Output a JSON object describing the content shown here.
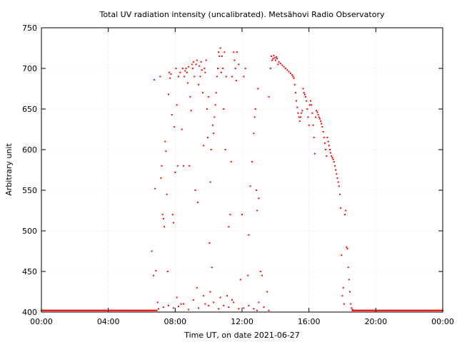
{
  "chart_data": {
    "type": "scatter",
    "title": "Total UV radiation intensity (uncalibrated). Metsähovi Radio Observatory",
    "xlabel": "Time UT, on date 2021-06-27",
    "ylabel": "Arbitrary unit",
    "xlim": [
      0,
      24
    ],
    "ylim": [
      400,
      750
    ],
    "x_ticks": [
      {
        "value": 0,
        "label": "00:00"
      },
      {
        "value": 4,
        "label": "04:00"
      },
      {
        "value": 8,
        "label": "08:00"
      },
      {
        "value": 12,
        "label": "12:00"
      },
      {
        "value": 16,
        "label": "16:00"
      },
      {
        "value": 20,
        "label": "20:00"
      },
      {
        "value": 24,
        "label": "00:00"
      }
    ],
    "y_ticks": [
      400,
      450,
      500,
      550,
      600,
      650,
      700,
      750
    ],
    "grid": true,
    "marker_color": "#ff0000",
    "series": [
      {
        "points": [
          [
            6.6,
            475
          ],
          [
            6.7,
            445
          ],
          [
            6.75,
            686
          ],
          [
            6.8,
            552
          ],
          [
            6.85,
            451
          ],
          [
            6.95,
            412
          ],
          [
            7.1,
            690
          ],
          [
            7.15,
            565
          ],
          [
            7.2,
            580
          ],
          [
            7.25,
            520
          ],
          [
            7.3,
            515
          ],
          [
            7.35,
            505
          ],
          [
            7.4,
            610
          ],
          [
            7.45,
            598
          ],
          [
            7.5,
            545
          ],
          [
            7.55,
            450
          ],
          [
            7.6,
            668
          ],
          [
            7.65,
            695
          ],
          [
            7.7,
            688
          ],
          [
            7.75,
            693
          ],
          [
            7.8,
            643
          ],
          [
            7.85,
            520
          ],
          [
            7.9,
            510
          ],
          [
            7.95,
            628
          ],
          [
            8.0,
            572
          ],
          [
            8.05,
            700
          ],
          [
            8.1,
            655
          ],
          [
            8.15,
            580
          ],
          [
            8.2,
            690
          ],
          [
            8.3,
            695
          ],
          [
            8.35,
            410
          ],
          [
            8.4,
            625
          ],
          [
            8.45,
            700
          ],
          [
            8.5,
            580
          ],
          [
            8.55,
            690
          ],
          [
            8.6,
            697
          ],
          [
            8.65,
            700
          ],
          [
            8.7,
            695
          ],
          [
            8.75,
            682
          ],
          [
            8.8,
            702
          ],
          [
            8.85,
            580
          ],
          [
            8.9,
            665
          ],
          [
            8.95,
            648
          ],
          [
            9.0,
            705
          ],
          [
            9.05,
            700
          ],
          [
            9.1,
            708
          ],
          [
            9.15,
            690
          ],
          [
            9.2,
            550
          ],
          [
            9.25,
            705
          ],
          [
            9.3,
            710
          ],
          [
            9.35,
            535
          ],
          [
            9.4,
            680
          ],
          [
            9.45,
            703
          ],
          [
            9.5,
            690
          ],
          [
            9.55,
            708
          ],
          [
            9.6,
            698
          ],
          [
            9.65,
            670
          ],
          [
            9.7,
            605
          ],
          [
            9.75,
            700
          ],
          [
            9.8,
            695
          ],
          [
            9.85,
            710
          ],
          [
            9.9,
            650
          ],
          [
            9.95,
            615
          ],
          [
            10.0,
            665
          ],
          [
            10.05,
            485
          ],
          [
            10.1,
            560
          ],
          [
            10.15,
            600
          ],
          [
            10.2,
            455
          ],
          [
            10.25,
            630
          ],
          [
            10.3,
            620
          ],
          [
            10.35,
            640
          ],
          [
            10.4,
            655
          ],
          [
            10.45,
            670
          ],
          [
            10.5,
            690
          ],
          [
            10.55,
            700
          ],
          [
            10.6,
            720
          ],
          [
            10.65,
            715
          ],
          [
            10.7,
            725
          ],
          [
            10.75,
            695
          ],
          [
            10.8,
            715
          ],
          [
            10.85,
            700
          ],
          [
            10.9,
            650
          ],
          [
            10.95,
            720
          ],
          [
            11.0,
            600
          ],
          [
            11.05,
            690
          ],
          [
            11.1,
            420
          ],
          [
            11.2,
            505
          ],
          [
            11.3,
            520
          ],
          [
            11.35,
            585
          ],
          [
            11.4,
            690
          ],
          [
            11.5,
            720
          ],
          [
            11.55,
            710
          ],
          [
            11.6,
            700
          ],
          [
            11.65,
            685
          ],
          [
            11.7,
            720
          ],
          [
            11.8,
            705
          ],
          [
            11.9,
            440
          ],
          [
            12.0,
            520
          ],
          [
            12.1,
            690
          ],
          [
            12.2,
            700
          ],
          [
            12.35,
            445
          ],
          [
            12.4,
            495
          ],
          [
            12.5,
            555
          ],
          [
            12.6,
            585
          ],
          [
            12.7,
            620
          ],
          [
            12.75,
            640
          ],
          [
            12.8,
            650
          ],
          [
            12.85,
            550
          ],
          [
            12.9,
            525
          ],
          [
            12.95,
            675
          ],
          [
            13.0,
            540
          ],
          [
            13.1,
            450
          ],
          [
            13.2,
            445
          ],
          [
            13.5,
            425
          ],
          [
            13.6,
            665
          ],
          [
            13.7,
            700
          ],
          [
            13.75,
            715
          ],
          [
            13.8,
            710
          ],
          [
            13.85,
            712
          ],
          [
            13.9,
            716
          ],
          [
            13.95,
            713
          ],
          [
            14.0,
            710
          ],
          [
            14.05,
            714
          ],
          [
            14.1,
            712
          ],
          [
            14.15,
            705
          ],
          [
            14.2,
            708
          ],
          [
            14.3,
            706
          ],
          [
            14.4,
            704
          ],
          [
            14.5,
            702
          ],
          [
            14.6,
            700
          ],
          [
            14.7,
            698
          ],
          [
            14.8,
            696
          ],
          [
            14.9,
            694
          ],
          [
            15.0,
            692
          ],
          [
            15.05,
            690
          ],
          [
            15.1,
            688
          ],
          [
            15.15,
            680
          ],
          [
            15.2,
            670
          ],
          [
            15.25,
            660
          ],
          [
            15.3,
            652
          ],
          [
            15.35,
            645
          ],
          [
            15.4,
            640
          ],
          [
            15.45,
            635
          ],
          [
            15.5,
            640
          ],
          [
            15.55,
            645
          ],
          [
            15.6,
            648
          ],
          [
            15.65,
            675
          ],
          [
            15.7,
            670
          ],
          [
            15.75,
            668
          ],
          [
            15.8,
            665
          ],
          [
            15.85,
            660
          ],
          [
            15.9,
            650
          ],
          [
            15.95,
            640
          ],
          [
            16.0,
            630
          ],
          [
            16.05,
            655
          ],
          [
            16.1,
            660
          ],
          [
            16.15,
            655
          ],
          [
            16.2,
            645
          ],
          [
            16.25,
            630
          ],
          [
            16.3,
            615
          ],
          [
            16.35,
            595
          ],
          [
            16.4,
            640
          ],
          [
            16.45,
            648
          ],
          [
            16.5,
            646
          ],
          [
            16.55,
            643
          ],
          [
            16.6,
            640
          ],
          [
            16.65,
            638
          ],
          [
            16.7,
            635
          ],
          [
            16.75,
            632
          ],
          [
            16.8,
            628
          ],
          [
            16.85,
            622
          ],
          [
            16.9,
            615
          ],
          [
            16.95,
            608
          ],
          [
            17.0,
            600
          ],
          [
            17.05,
            592
          ],
          [
            17.1,
            615
          ],
          [
            17.15,
            610
          ],
          [
            17.2,
            605
          ],
          [
            17.25,
            600
          ],
          [
            17.3,
            596
          ],
          [
            17.35,
            592
          ],
          [
            17.4,
            590
          ],
          [
            17.45,
            588
          ],
          [
            17.5,
            585
          ],
          [
            17.55,
            580
          ],
          [
            17.6,
            575
          ],
          [
            17.65,
            570
          ],
          [
            17.7,
            565
          ],
          [
            17.75,
            560
          ],
          [
            17.8,
            555
          ],
          [
            17.85,
            545
          ],
          [
            17.9,
            528
          ],
          [
            17.95,
            470
          ],
          [
            18.0,
            420
          ],
          [
            18.05,
            430
          ],
          [
            18.1,
            410
          ],
          [
            18.15,
            520
          ],
          [
            18.2,
            525
          ],
          [
            18.25,
            480
          ],
          [
            18.3,
            478
          ],
          [
            18.35,
            455
          ],
          [
            18.4,
            440
          ],
          [
            18.45,
            425
          ],
          [
            18.5,
            410
          ],
          [
            18.55,
            405
          ],
          [
            18.6,
            403
          ],
          [
            7.0,
            404
          ],
          [
            7.3,
            406
          ],
          [
            7.6,
            408
          ],
          [
            7.9,
            405
          ],
          [
            8.2,
            407
          ],
          [
            8.5,
            410
          ],
          [
            8.8,
            403
          ],
          [
            9.1,
            415
          ],
          [
            9.4,
            405
          ],
          [
            9.7,
            420
          ],
          [
            10.0,
            408
          ],
          [
            10.3,
            412
          ],
          [
            10.6,
            404
          ],
          [
            10.9,
            408
          ],
          [
            11.2,
            406
          ],
          [
            11.5,
            412
          ],
          [
            11.8,
            404
          ],
          [
            12.1,
            405
          ],
          [
            12.4,
            408
          ],
          [
            12.7,
            404
          ],
          [
            13.0,
            412
          ],
          [
            13.3,
            406
          ],
          [
            9.3,
            430
          ],
          [
            10.1,
            425
          ],
          [
            9.8,
            410
          ],
          [
            11.4,
            415
          ],
          [
            12.9,
            402
          ],
          [
            13.6,
            402
          ],
          [
            10.7,
            418
          ],
          [
            8.1,
            418
          ]
        ],
        "baseline": {
          "y": 402,
          "segments": [
            [
              0,
              6.9
            ],
            [
              18.6,
              24
            ]
          ]
        }
      }
    ]
  }
}
